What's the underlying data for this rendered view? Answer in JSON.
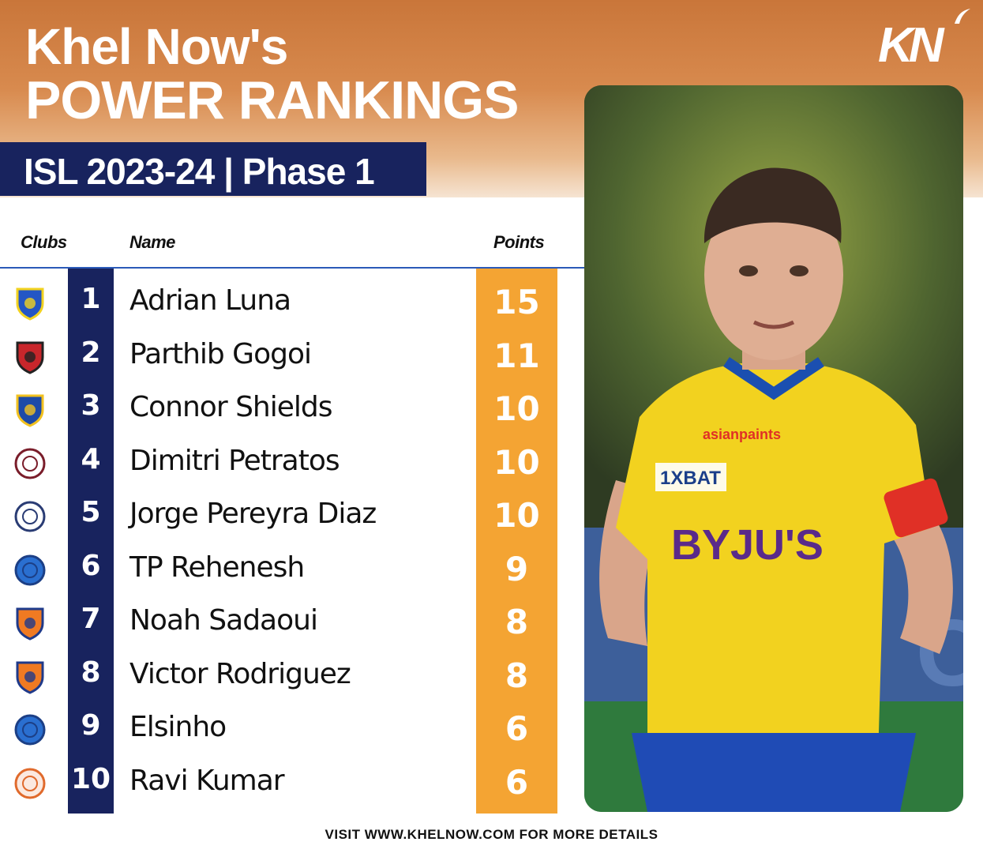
{
  "header": {
    "title_line1": "Khel Now's",
    "title_line2": "POWER RANKINGS",
    "logo_text": "KN"
  },
  "banner": {
    "text": "ISL 2023-24 | Phase 1"
  },
  "columns": {
    "clubs": "Clubs",
    "name": "Name",
    "points": "Points"
  },
  "rankings": [
    {
      "rank": "1",
      "name": "Adrian Luna",
      "points": "15",
      "club_icon": "kerala-blasters-crest-icon"
    },
    {
      "rank": "2",
      "name": "Parthib Gogoi",
      "points": "11",
      "club_icon": "northeast-united-crest-icon"
    },
    {
      "rank": "3",
      "name": "Connor Shields",
      "points": "10",
      "club_icon": "chennaiyin-fc-crest-icon"
    },
    {
      "rank": "4",
      "name": "Dimitri Petratos",
      "points": "10",
      "club_icon": "mohun-bagan-crest-icon"
    },
    {
      "rank": "5",
      "name": "Jorge Pereyra Diaz",
      "points": "10",
      "club_icon": "mumbai-city-crest-icon"
    },
    {
      "rank": "6",
      "name": "TP Rehenesh",
      "points": "9",
      "club_icon": "jamshedpur-fc-crest-icon"
    },
    {
      "rank": "7",
      "name": "Noah Sadaoui",
      "points": "8",
      "club_icon": "fc-goa-crest-icon"
    },
    {
      "rank": "8",
      "name": "Victor Rodriguez",
      "points": "8",
      "club_icon": "fc-goa-crest-icon"
    },
    {
      "rank": "9",
      "name": "Elsinho",
      "points": "6",
      "club_icon": "jamshedpur-fc-crest-icon"
    },
    {
      "rank": "10",
      "name": "Ravi Kumar",
      "points": "6",
      "club_icon": "punjab-fc-crest-icon"
    }
  ],
  "photo": {
    "sponsor_text_1": "BYJU'S",
    "sponsor_text_2": "1XBAT",
    "sponsor_text_3": "asianpaints"
  },
  "footer": {
    "text": "VISIT WWW.KHELNOW.COM FOR MORE DETAILS"
  },
  "colors": {
    "navy": "#18235e",
    "orange": "#f4a433",
    "header_copper": "#c9763a",
    "jersey_yellow": "#f2d21f"
  }
}
